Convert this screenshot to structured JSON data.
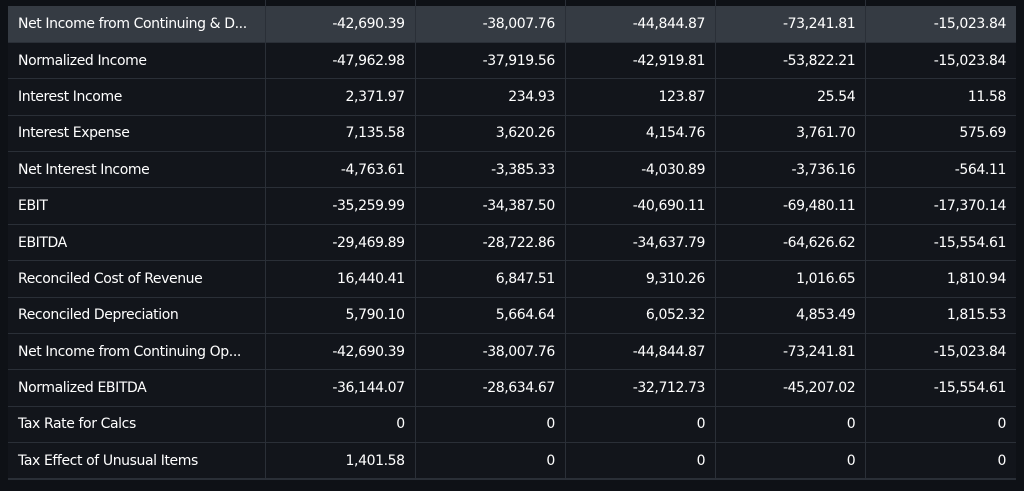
{
  "rows": [
    {
      "label": "Net Income from Continuing & D...",
      "values": [
        "-42,690.39",
        "-38,007.76",
        "-44,844.87",
        "-73,241.81",
        "-15,023.84"
      ],
      "highlight": true
    },
    {
      "label": "Normalized Income",
      "values": [
        "-47,962.98",
        "-37,919.56",
        "-42,919.81",
        "-53,822.21",
        "-15,023.84"
      ]
    },
    {
      "label": "Interest Income",
      "values": [
        "2,371.97",
        "234.93",
        "123.87",
        "25.54",
        "11.58"
      ]
    },
    {
      "label": "Interest Expense",
      "values": [
        "7,135.58",
        "3,620.26",
        "4,154.76",
        "3,761.70",
        "575.69"
      ]
    },
    {
      "label": "Net Interest Income",
      "values": [
        "-4,763.61",
        "-3,385.33",
        "-4,030.89",
        "-3,736.16",
        "-564.11"
      ]
    },
    {
      "label": "EBIT",
      "values": [
        "-35,259.99",
        "-34,387.50",
        "-40,690.11",
        "-69,480.11",
        "-17,370.14"
      ]
    },
    {
      "label": "EBITDA",
      "values": [
        "-29,469.89",
        "-28,722.86",
        "-34,637.79",
        "-64,626.62",
        "-15,554.61"
      ]
    },
    {
      "label": "Reconciled Cost of Revenue",
      "values": [
        "16,440.41",
        "6,847.51",
        "9,310.26",
        "1,016.65",
        "1,810.94"
      ]
    },
    {
      "label": "Reconciled Depreciation",
      "values": [
        "5,790.10",
        "5,664.64",
        "6,052.32",
        "4,853.49",
        "1,815.53"
      ]
    },
    {
      "label": "Net Income from Continuing Op...",
      "values": [
        "-42,690.39",
        "-38,007.76",
        "-44,844.87",
        "-73,241.81",
        "-15,023.84"
      ]
    },
    {
      "label": "Normalized EBITDA",
      "values": [
        "-36,144.07",
        "-28,634.67",
        "-32,712.73",
        "-45,207.02",
        "-15,554.61"
      ]
    },
    {
      "label": "Tax Rate for Calcs",
      "values": [
        "0",
        "0",
        "0",
        "0",
        "0"
      ]
    },
    {
      "label": "Tax Effect of Unusual Items",
      "values": [
        "1,401.58",
        "0",
        "0",
        "0",
        "0"
      ]
    }
  ],
  "colors": {
    "background": "#12151b",
    "highlight_row": "#353b43",
    "grid": "#2a2f37",
    "text": "#ffffff"
  }
}
